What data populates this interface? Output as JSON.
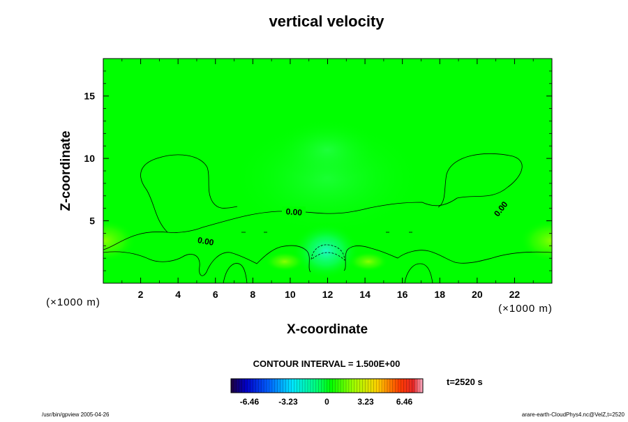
{
  "chart_data": {
    "type": "heatmap",
    "title": "vertical velocity",
    "xlabel": "X-coordinate",
    "ylabel": "Z-coordinate",
    "x_unit": "(×1000 m)",
    "z_unit": "(×1000 m)",
    "xlim": [
      0,
      24
    ],
    "ylim": [
      0,
      18
    ],
    "x_ticks": [
      2,
      4,
      6,
      8,
      10,
      12,
      14,
      16,
      18,
      20,
      22
    ],
    "y_ticks": [
      5,
      10,
      15
    ],
    "contour_labels": [
      "0.00",
      "0.00",
      "0.00"
    ],
    "contour_interval_text": "CONTOUR INTERVAL = 1.500E+00",
    "time_text": "t=2520 s",
    "colorbar": {
      "min": -8.0,
      "max": 8.0,
      "tick_values": [
        -6.46,
        -3.23,
        0,
        3.23,
        6.46
      ],
      "tick_labels": [
        "-6.46",
        "-3.23",
        "0",
        "3.23",
        "6.46"
      ]
    },
    "footer_left": "/usr/bin/gpview 2005-04-26",
    "footer_right": "arare-earth-CloudPhys4.nc@VelZ,t=2520"
  },
  "colors": {
    "field_background": "#00ff00",
    "contour_line": "#000000"
  }
}
